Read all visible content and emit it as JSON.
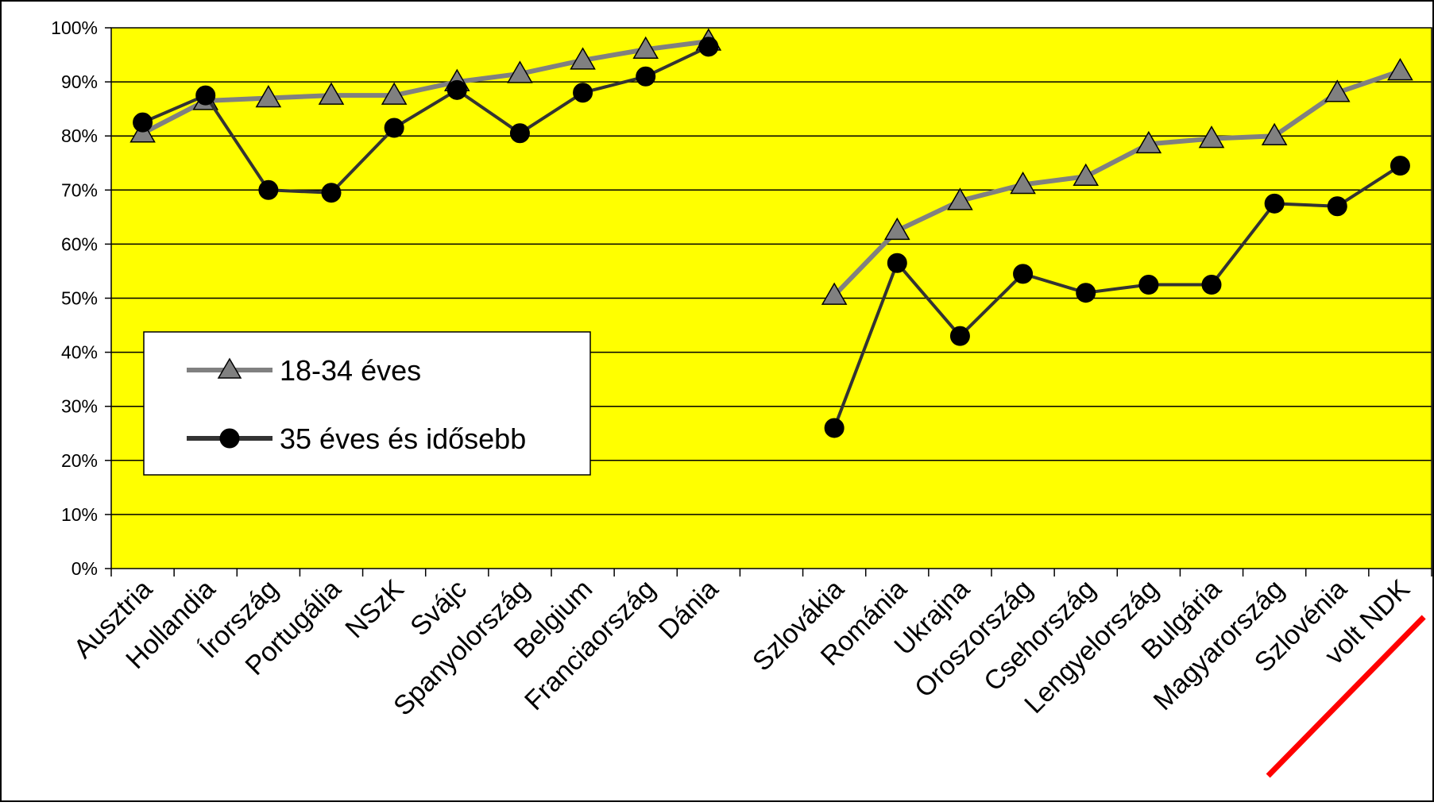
{
  "chart_data": {
    "type": "line",
    "categories": [
      "Ausztria",
      "Hollandia",
      "Írország",
      "Portugália",
      "NSzK",
      "Svájc",
      "Spanyolország",
      "Belgium",
      "Franciaország",
      "Dánia",
      "",
      "Szlovákia",
      "Románia",
      "Ukrajna",
      "Oroszország",
      "Csehország",
      "Lengyelország",
      "Bulgária",
      "Magyarország",
      "Szlovénia",
      "volt NDK"
    ],
    "series": [
      {
        "name": "18-34 éves",
        "color": "#808080",
        "marker": "triangle",
        "values": [
          80.5,
          86.5,
          87,
          87.5,
          87.5,
          90,
          91.5,
          94,
          96,
          97.5,
          null,
          50.5,
          62.5,
          68,
          71,
          72.5,
          78.5,
          79.5,
          80,
          88,
          92
        ]
      },
      {
        "name": "35 éves és idősebb",
        "color": "#333333",
        "marker": "circle",
        "values": [
          82.5,
          87.5,
          70,
          69.5,
          81.5,
          88.5,
          80.5,
          88,
          91,
          96.5,
          null,
          26,
          56.5,
          43,
          54.5,
          51,
          52.5,
          52.5,
          67.5,
          67,
          74.5
        ]
      }
    ],
    "y_ticks": [
      "0%",
      "10%",
      "20%",
      "30%",
      "40%",
      "50%",
      "60%",
      "70%",
      "80%",
      "90%",
      "100%"
    ],
    "ylim": [
      0,
      100
    ],
    "xlabel": "",
    "ylabel": "",
    "title": "",
    "grid": true,
    "legend_position": "left-middle",
    "plot_background": "#FFFF00",
    "highlight_strike_category": "Magyarország",
    "highlight_color": "#FF0000"
  }
}
